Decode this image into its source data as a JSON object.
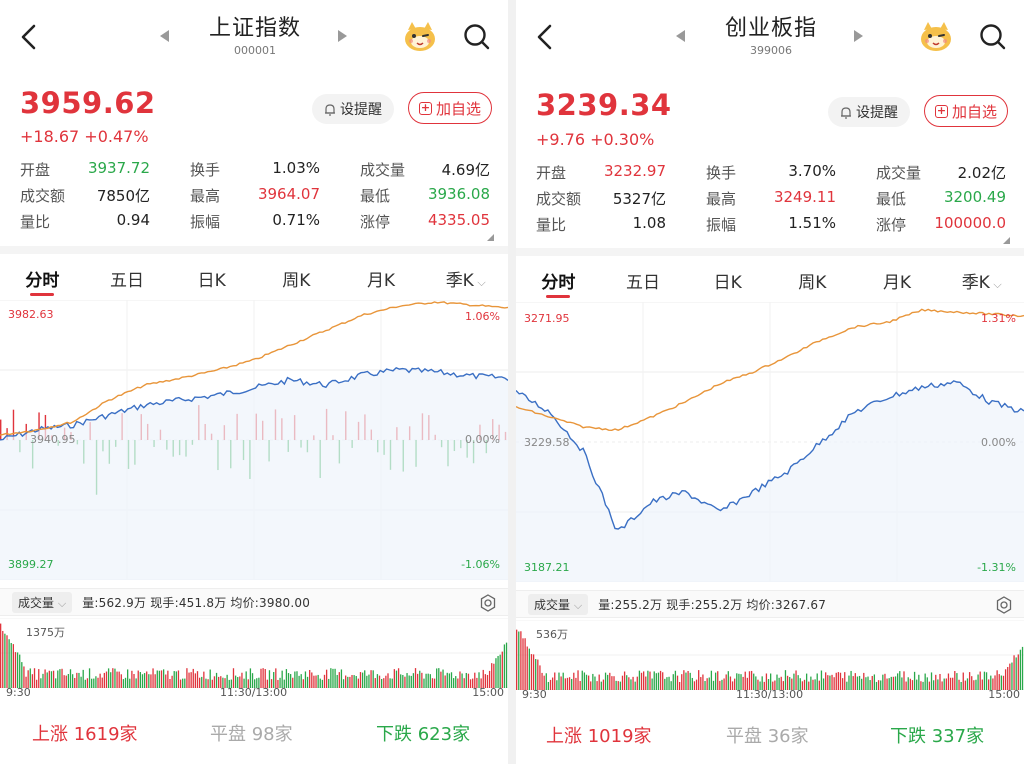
{
  "panels": [
    {
      "title": "上证指数",
      "code": "000001",
      "price": "3959.62",
      "change": "+18.67  +0.47%",
      "alert_label": "设提醒",
      "fav_label": "加自选",
      "stats": [
        [
          {
            "l": "开盘",
            "v": "3937.72",
            "c": "green"
          },
          {
            "l": "换手",
            "v": "1.03%",
            "c": ""
          },
          {
            "l": "成交量",
            "v": "4.69亿",
            "c": ""
          }
        ],
        [
          {
            "l": "成交额",
            "v": "7850亿",
            "c": ""
          },
          {
            "l": "最高",
            "v": "3964.07",
            "c": "red"
          },
          {
            "l": "最低",
            "v": "3936.08",
            "c": "green"
          }
        ],
        [
          {
            "l": "量比",
            "v": "0.94",
            "c": ""
          },
          {
            "l": "振幅",
            "v": "0.71%",
            "c": ""
          },
          {
            "l": "涨停",
            "v": "4335.05",
            "c": "red"
          }
        ]
      ],
      "tabs": [
        "分时",
        "五日",
        "日K",
        "周K",
        "月K",
        "季K"
      ],
      "chart": {
        "max_label": "3982.63",
        "max_pct": "1.06%",
        "mid_label": "3940.95",
        "mid_pct": "0.00%",
        "min_label": "3899.27",
        "min_pct": "-1.06%"
      },
      "volume": {
        "label": "成交量",
        "info": "量:562.9万  现手:451.8万  均价:3980.00",
        "max_label": "1375万"
      },
      "times": [
        "9:30",
        "11:30/13:00",
        "15:00"
      ],
      "breadth": {
        "up_label": "上涨",
        "up": "1619家",
        "flat_label": "平盘",
        "flat": "98家",
        "down_label": "下跌",
        "down": "623家"
      }
    },
    {
      "title": "创业板指",
      "code": "399006",
      "price": "3239.34",
      "change": "+9.76  +0.30%",
      "alert_label": "设提醒",
      "fav_label": "加自选",
      "stats": [
        [
          {
            "l": "开盘",
            "v": "3232.97",
            "c": "red"
          },
          {
            "l": "换手",
            "v": "3.70%",
            "c": ""
          },
          {
            "l": "成交量",
            "v": "2.02亿",
            "c": ""
          }
        ],
        [
          {
            "l": "成交额",
            "v": "5327亿",
            "c": ""
          },
          {
            "l": "最高",
            "v": "3249.11",
            "c": "red"
          },
          {
            "l": "最低",
            "v": "3200.49",
            "c": "green"
          }
        ],
        [
          {
            "l": "量比",
            "v": "1.08",
            "c": ""
          },
          {
            "l": "振幅",
            "v": "1.51%",
            "c": ""
          },
          {
            "l": "涨停",
            "v": "100000.0",
            "c": "red"
          }
        ]
      ],
      "tabs": [
        "分时",
        "五日",
        "日K",
        "周K",
        "月K",
        "季K"
      ],
      "chart": {
        "max_label": "3271.95",
        "max_pct": "1.31%",
        "mid_label": "3229.58",
        "mid_pct": "0.00%",
        "min_label": "3187.21",
        "min_pct": "-1.31%"
      },
      "volume": {
        "label": "成交量",
        "info": "量:255.2万  现手:255.2万  均价:3267.67",
        "max_label": "536万"
      },
      "times": [
        "9:30",
        "11:30/13:00",
        "15:00"
      ],
      "breadth": {
        "up_label": "上涨",
        "up": "1019家",
        "flat_label": "平盘",
        "flat": "36家",
        "down_label": "下跌",
        "down": "337家"
      }
    }
  ],
  "colors": {
    "up": "#e0343c",
    "down": "#2aa84a",
    "price_line": "#3a6fc4",
    "avg_line": "#e8953a",
    "area_fill": "#eef4fb"
  },
  "icons": {
    "back": "chevron-left-icon",
    "prev": "triangle-left-icon",
    "next": "triangle-right-icon",
    "mascot": "mascot-icon",
    "search": "search-icon",
    "bell": "bell-icon",
    "plus": "plus-box-icon",
    "caret": "caret-down-icon",
    "gear": "settings-icon"
  }
}
